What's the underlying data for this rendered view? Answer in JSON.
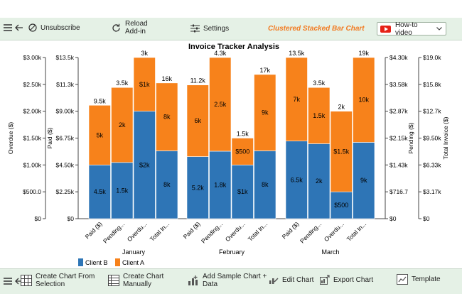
{
  "toolbar": {
    "unsubscribe_label": "Unsubscribe",
    "reload_label_line1": "Reload",
    "reload_label_line2": "Add-in",
    "settings_label": "Settings",
    "brand_label": "Clustered Stacked Bar Chart",
    "video_label": "How-to video"
  },
  "bottom_toolbar": {
    "create_from_selection_line1": "Create Chart From",
    "create_from_selection_line2": "Selection",
    "create_manually_line1": "Create Chart",
    "create_manually_line2": "Manually",
    "add_sample_line1": "Add Sample Chart +",
    "add_sample_line2": "Data",
    "edit_label": "Edit Chart",
    "export_label": "Export Chart",
    "template_label": "Template"
  },
  "colors": {
    "toolbar_bg": "#e5f1e6",
    "client_b": "#2e75b6",
    "client_a": "#f7821b",
    "brand": "#f27a21"
  },
  "chart_data": {
    "type": "bar",
    "title": "Invoice Tracker Analysis",
    "groups": [
      "January",
      "February",
      "March"
    ],
    "categories": [
      "Paid ($)",
      "Pending...",
      "Overdu...",
      "Total In..."
    ],
    "tick_labels_shown": [
      "Paid ($)",
      "Pending...",
      "Overdu...",
      "Total In..."
    ],
    "series": [
      {
        "name": "Client B",
        "color": "#2e75b6",
        "labels": [
          [
            "4.5k",
            "1.5k",
            "$2k",
            "8k"
          ],
          [
            "5.2k",
            "1.8k",
            "$1k",
            "8k"
          ],
          [
            "6.5k",
            "2k",
            "$500",
            "9k"
          ]
        ]
      },
      {
        "name": "Client A",
        "color": "#f7821b",
        "labels": [
          [
            "5k",
            "2k",
            "$1k",
            "8k"
          ],
          [
            "6k",
            "2.5k",
            "$500",
            "9k"
          ],
          [
            "7k",
            "1.5k",
            "$1.5k",
            "10k"
          ]
        ]
      }
    ],
    "values_client_b": [
      [
        4500,
        1500,
        2000,
        8000
      ],
      [
        5200,
        1800,
        1000,
        8000
      ],
      [
        6500,
        2000,
        500,
        9000
      ]
    ],
    "values_client_a": [
      [
        5000,
        2000,
        1000,
        8000
      ],
      [
        6000,
        2500,
        500,
        9000
      ],
      [
        7000,
        1500,
        1500,
        10000
      ]
    ],
    "totals": [
      [
        "9.5k",
        "3.5k",
        "3k",
        "16k"
      ],
      [
        "11.2k",
        "4.3k",
        "1.5k",
        "17k"
      ],
      [
        "13.5k",
        "3.5k",
        "2k",
        "19k"
      ]
    ],
    "axes": {
      "overdue": {
        "label": "Overdue ($)",
        "ticks": [
          "$3.00k",
          "$2.50k",
          "$2.00k",
          "$1.50k",
          "$1.00k",
          "$500.0",
          "$0"
        ],
        "max": 3000
      },
      "paid": {
        "label": "Paid ($)",
        "ticks": [
          "$13.5k",
          "$11.3k",
          "$9.00k",
          "$6.75k",
          "$4.50k",
          "$2.25k",
          "$0"
        ],
        "max": 13500
      },
      "pending": {
        "label": "Pending ($)",
        "ticks": [
          "$4.30k",
          "$3.58k",
          "$2.87k",
          "$2.15k",
          "$1.43k",
          "$716.7",
          "$0"
        ],
        "max": 4300
      },
      "total": {
        "label": "Total Invoice ($)",
        "ticks": [
          "$19.0k",
          "$15.8k",
          "$12.7k",
          "$9.50k",
          "$6.33k",
          "$3.17k",
          "$0"
        ],
        "max": 19000
      }
    },
    "legend": {
      "position": "bottom-left",
      "entries": [
        "Client B",
        "Client A"
      ]
    }
  }
}
